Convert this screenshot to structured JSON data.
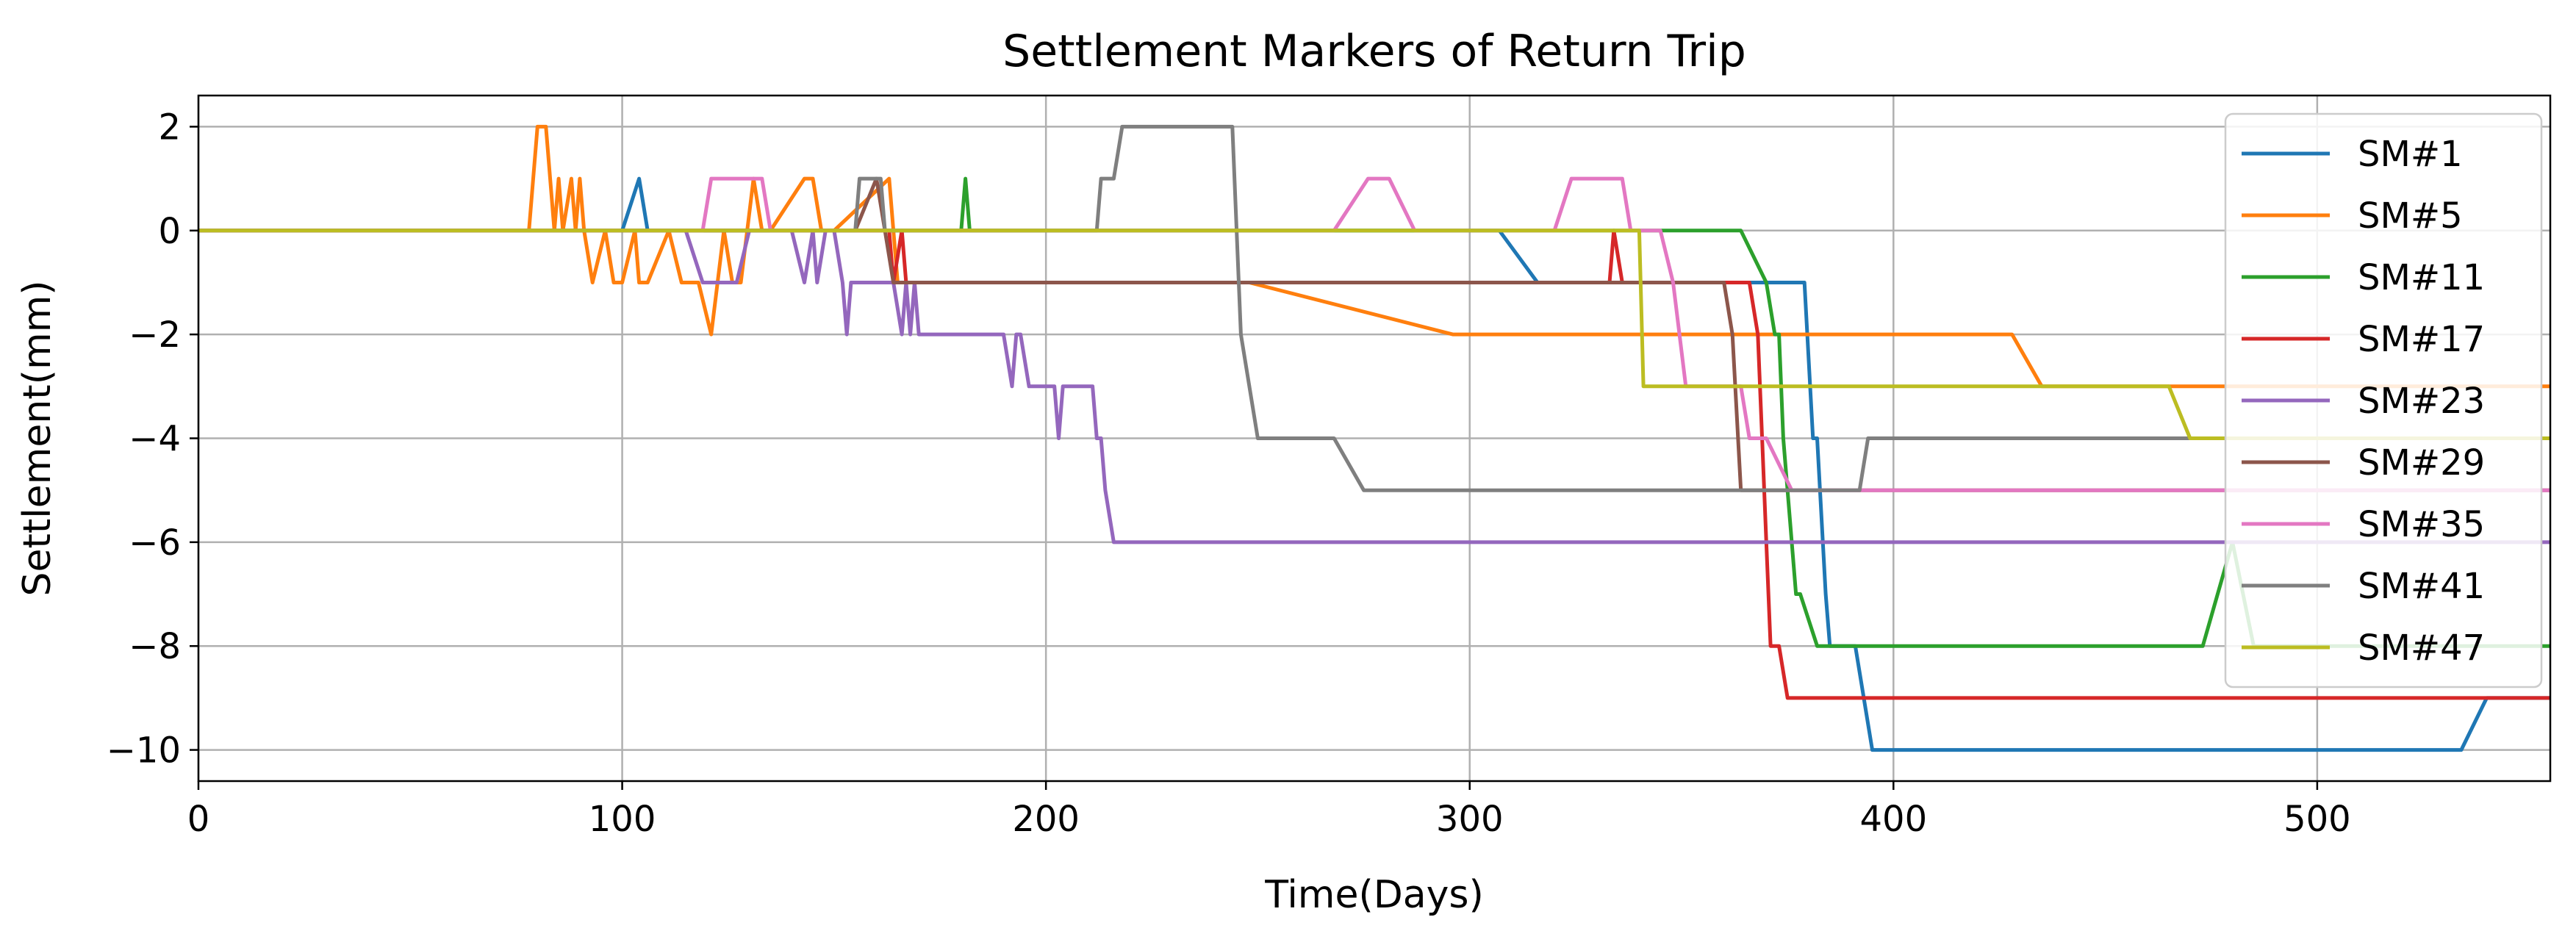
{
  "chart_data": {
    "type": "line",
    "title": "Settlement Markers of Return Trip",
    "xlabel": "Time(Days)",
    "ylabel": "Settlement(mm)",
    "xlim": [
      0,
      555
    ],
    "ylim": [
      -10.6,
      2.6
    ],
    "xticks": [
      0,
      100,
      200,
      300,
      400,
      500
    ],
    "yticks": [
      -10,
      -8,
      -6,
      -4,
      -2,
      0,
      2
    ],
    "xtick_labels": [
      "0",
      "100",
      "200",
      "300",
      "400",
      "500"
    ],
    "ytick_labels": [
      "−10",
      "−8",
      "−6",
      "−4",
      "−2",
      "0",
      "2"
    ],
    "grid": true,
    "legend_position": "upper-right",
    "series": [
      {
        "name": "SM#1",
        "color": "#1f77b4",
        "x": [
          0,
          100,
          104,
          106,
          120,
          307,
          316,
          317,
          332,
          379,
          381,
          382,
          384,
          385,
          391,
          395,
          396,
          534,
          540,
          555
        ],
        "y": [
          0,
          0,
          1,
          0,
          0,
          0,
          -1,
          -1,
          -1,
          -1,
          -4,
          -4,
          -7,
          -8,
          -8,
          -10,
          -10,
          -10,
          -9,
          -9
        ]
      },
      {
        "name": "SM#5",
        "color": "#ff7f0e",
        "x": [
          0,
          78,
          80,
          82,
          84,
          85,
          86,
          88,
          89,
          90,
          91,
          93,
          96,
          98,
          100,
          103,
          104,
          106,
          111,
          114,
          118,
          121,
          124,
          126,
          128,
          131,
          133,
          135,
          143,
          145,
          147,
          150,
          163,
          165,
          167,
          246,
          248,
          296,
          302,
          428,
          435,
          555
        ],
        "y": [
          0,
          0,
          2,
          2,
          0,
          1,
          0,
          1,
          0,
          1,
          0,
          -1,
          0,
          -1,
          -1,
          0,
          -1,
          -1,
          0,
          -1,
          -1,
          -2,
          0,
          -1,
          -1,
          1,
          0,
          0,
          1,
          1,
          0,
          0,
          1,
          -1,
          -1,
          -1,
          -1,
          -2,
          -2,
          -2,
          -3,
          -3
        ]
      },
      {
        "name": "SM#11",
        "color": "#2ca02c",
        "x": [
          0,
          179,
          180,
          181,
          182,
          330,
          364,
          370,
          372,
          373,
          374,
          377,
          378,
          382,
          473,
          480,
          485,
          555
        ],
        "y": [
          0,
          0,
          0,
          1,
          0,
          0,
          0,
          -1,
          -2,
          -2,
          -4,
          -7,
          -7,
          -8,
          -8,
          -6,
          -8,
          -8
        ]
      },
      {
        "name": "SM#17",
        "color": "#d62728",
        "x": [
          0,
          150,
          163,
          164,
          166,
          167,
          168,
          333,
          334,
          336,
          350,
          351,
          366,
          368,
          369,
          370,
          371,
          373,
          375,
          379,
          380,
          540,
          548,
          555
        ],
        "y": [
          0,
          0,
          0,
          -1,
          0,
          -1,
          -1,
          -1,
          0,
          -1,
          -1,
          -1,
          -1,
          -2,
          -4,
          -6,
          -8,
          -8,
          -9,
          -9,
          -9,
          -9,
          -9,
          -9
        ]
      },
      {
        "name": "SM#23",
        "color": "#9467bd",
        "x": [
          0,
          115,
          119,
          122,
          125,
          127,
          130,
          131,
          140,
          143,
          145,
          146,
          148,
          150,
          152,
          153,
          154,
          156,
          157,
          160,
          164,
          166,
          167,
          168,
          169,
          170,
          175,
          190,
          192,
          193,
          194,
          196,
          202,
          203,
          204,
          205,
          211,
          212,
          213,
          214,
          216,
          555
        ],
        "y": [
          0,
          0,
          -1,
          -1,
          -1,
          -1,
          0,
          0,
          0,
          -1,
          0,
          -1,
          0,
          0,
          -1,
          -2,
          -1,
          -1,
          -1,
          -1,
          -1,
          -2,
          -1,
          -2,
          -1,
          -2,
          -2,
          -2,
          -3,
          -2,
          -2,
          -3,
          -3,
          -4,
          -3,
          -3,
          -3,
          -4,
          -4,
          -5,
          -6,
          -6
        ]
      },
      {
        "name": "SM#29",
        "color": "#8c564b",
        "x": [
          0,
          155,
          160,
          162,
          164,
          166,
          360,
          362,
          364,
          555
        ],
        "y": [
          0,
          0,
          1,
          0,
          -1,
          -1,
          -1,
          -2,
          -5,
          -5
        ]
      },
      {
        "name": "SM#35",
        "color": "#e377c2",
        "x": [
          0,
          119,
          121,
          133,
          135,
          136,
          262,
          268,
          276,
          281,
          287,
          320,
          324,
          336,
          338,
          343,
          345,
          348,
          351,
          364,
          366,
          368,
          370,
          376,
          555
        ],
        "y": [
          0,
          0,
          1,
          1,
          0,
          0,
          0,
          0,
          1,
          1,
          0,
          0,
          1,
          1,
          0,
          0,
          0,
          -1,
          -3,
          -3,
          -4,
          -4,
          -4,
          -5,
          -5
        ]
      },
      {
        "name": "SM#41",
        "color": "#7f7f7f",
        "x": [
          0,
          155,
          156,
          157,
          158,
          161,
          162,
          163,
          212,
          213,
          216,
          218,
          228,
          244,
          245,
          246,
          248,
          250,
          252,
          268,
          275,
          300,
          385,
          392,
          394,
          395,
          555
        ],
        "y": [
          0,
          0,
          1,
          1,
          1,
          1,
          0,
          0,
          0,
          1,
          1,
          2,
          2,
          2,
          0,
          -2,
          -3,
          -4,
          -4,
          -4,
          -5,
          -5,
          -5,
          -5,
          -4,
          -4,
          -4
        ]
      },
      {
        "name": "SM#47",
        "color": "#bcbd22",
        "x": [
          0,
          340,
          341,
          342,
          465,
          470,
          555
        ],
        "y": [
          0,
          0,
          -3,
          -3,
          -3,
          -4,
          -4
        ]
      }
    ]
  }
}
